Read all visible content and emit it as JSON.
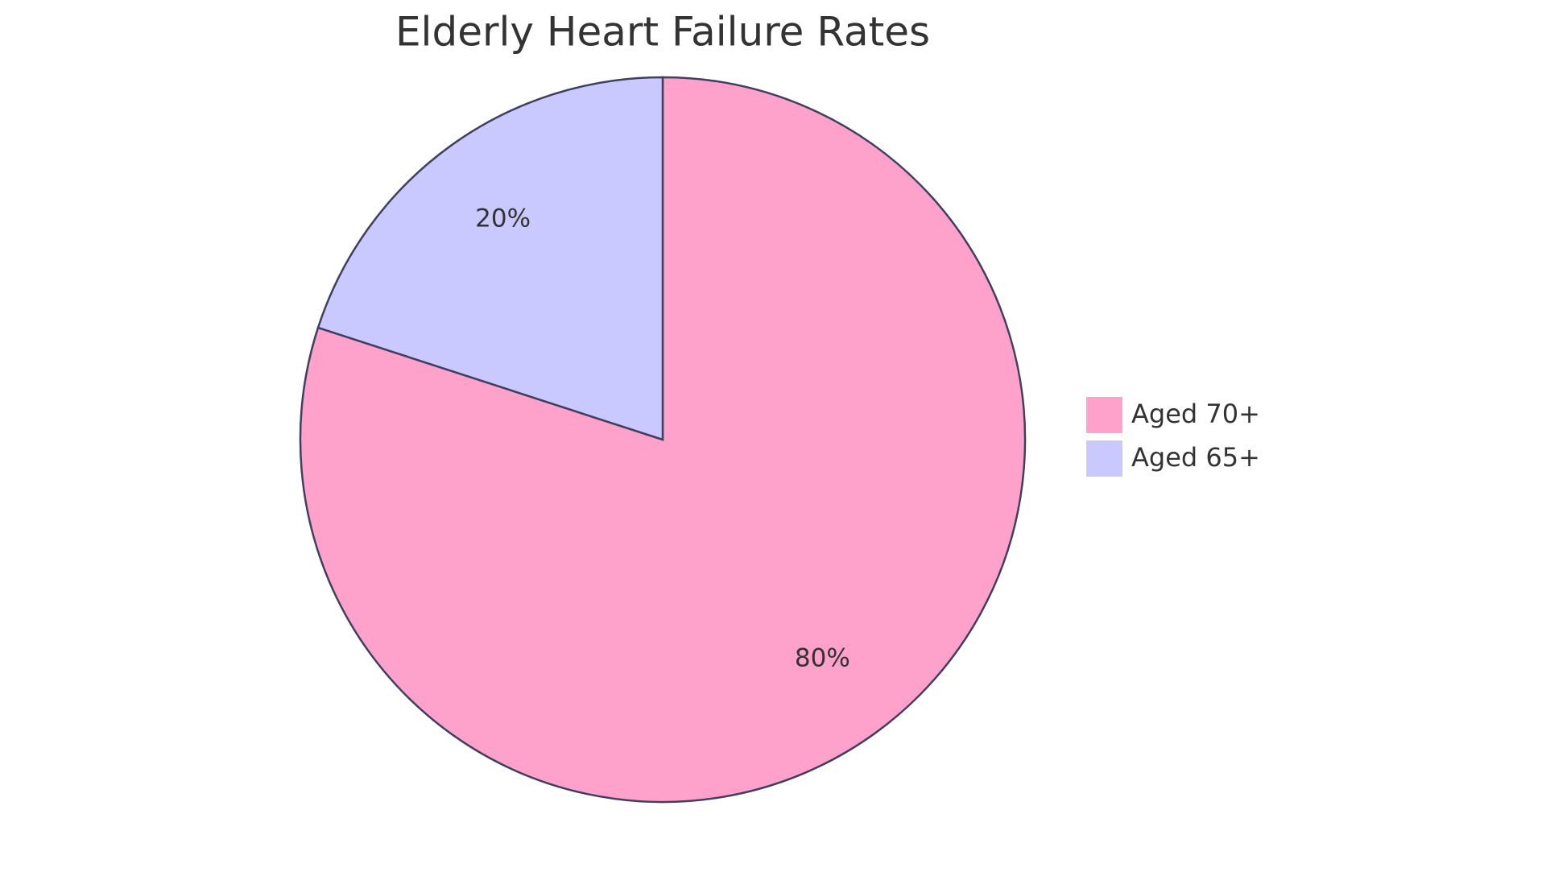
{
  "chart_data": {
    "type": "pie",
    "title": "Elderly Heart Failure Rates",
    "categories": [
      "Aged 70+",
      "Aged 65+"
    ],
    "values": [
      80,
      20
    ],
    "value_labels": [
      "80%",
      "20%"
    ],
    "colors": [
      "#ffa2cb",
      "#c9c9ff"
    ]
  }
}
